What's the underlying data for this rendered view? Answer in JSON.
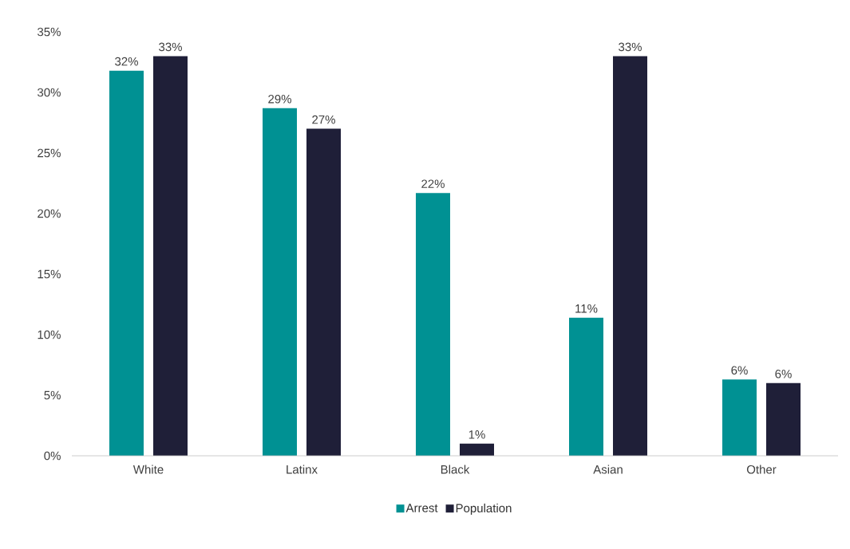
{
  "chart_data": {
    "type": "bar",
    "categories": [
      "White",
      "Latinx",
      "Black",
      "Asian",
      "Other"
    ],
    "series": [
      {
        "name": "Arrest",
        "color": "#009193",
        "values": [
          31.8,
          28.7,
          21.7,
          11.4,
          6.3
        ],
        "value_labels": [
          "32%",
          "29%",
          "22%",
          "11%",
          "6%"
        ]
      },
      {
        "name": "Population",
        "color": "#1f1f38",
        "values": [
          33.0,
          27.0,
          1.0,
          33.0,
          6.0
        ],
        "value_labels": [
          "33%",
          "27%",
          "1%",
          "33%",
          "6%"
        ]
      }
    ],
    "ylim": [
      0,
      35
    ],
    "yticks": [
      {
        "value": 0,
        "label": "0%"
      },
      {
        "value": 5,
        "label": "5%"
      },
      {
        "value": 10,
        "label": "10%"
      },
      {
        "value": 15,
        "label": "15%"
      },
      {
        "value": 20,
        "label": "20%"
      },
      {
        "value": 25,
        "label": "25%"
      },
      {
        "value": 30,
        "label": "30%"
      },
      {
        "value": 35,
        "label": "35%"
      }
    ],
    "grid": false,
    "legend": "bottom"
  }
}
